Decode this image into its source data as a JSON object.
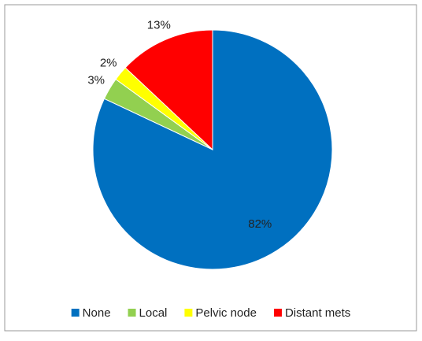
{
  "chart_data": {
    "type": "pie",
    "categories": [
      "None",
      "Local",
      "Pelvic node",
      "Distant mets"
    ],
    "values": [
      82,
      3,
      2,
      13
    ],
    "value_labels": [
      "82%",
      "3%",
      "2%",
      "13%"
    ],
    "colors": [
      "#0070c0",
      "#92d050",
      "#ffff00",
      "#ff0000"
    ],
    "legend": "bottom"
  }
}
